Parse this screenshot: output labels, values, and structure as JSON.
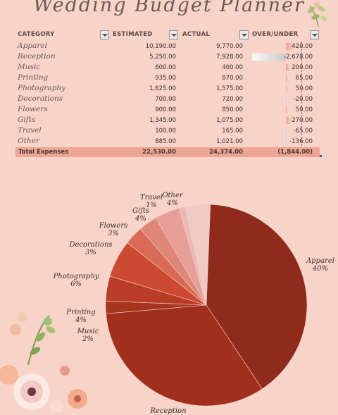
{
  "title": "Wedding Budget Planner",
  "table": {
    "headers": [
      "CATEGORY",
      "ESTIMATED",
      "ACTUAL",
      "OVER/UNDER"
    ],
    "rows": [
      {
        "category": "Apparel",
        "estimated": "10,190.00",
        "actual": "9,770.00",
        "over_under": "420.00",
        "diff": 420
      },
      {
        "category": "Reception",
        "estimated": "5,250.00",
        "actual": "7,928.00",
        "over_under": "-2,678.00",
        "diff": -2678
      },
      {
        "category": "Music",
        "estimated": "600.00",
        "actual": "400.00",
        "over_under": "200.00",
        "diff": 200
      },
      {
        "category": "Printing",
        "estimated": "935.00",
        "actual": "870.00",
        "over_under": "65.00",
        "diff": 65
      },
      {
        "category": "Photography",
        "estimated": "1,625.00",
        "actual": "1,575.00",
        "over_under": "50.00",
        "diff": 50
      },
      {
        "category": "Decorations",
        "estimated": "700.00",
        "actual": "720.00",
        "over_under": "-20.00",
        "diff": -20
      },
      {
        "category": "Flowers",
        "estimated": "900.00",
        "actual": "850.00",
        "over_under": "50.00",
        "diff": 50
      },
      {
        "category": "Gifts",
        "estimated": "1,345.00",
        "actual": "1,075.00",
        "over_under": "270.00",
        "diff": 270
      },
      {
        "category": "Travel",
        "estimated": "100.00",
        "actual": "165.00",
        "over_under": "-65.00",
        "diff": -65
      },
      {
        "category": "Other",
        "estimated": "885.00",
        "actual": "1,021.00",
        "over_under": "-136.00",
        "diff": -136
      }
    ],
    "total": {
      "label": "Total Expenses",
      "estimated": "22,530.00",
      "actual": "24,374.00",
      "over_under": "(1,844.00)"
    }
  },
  "colors": {
    "background": "#f7d3c8",
    "total_row": "#eea594",
    "positive_bar": "#f2a28f",
    "negative_bar": "#c9c9c9"
  },
  "chart_data": {
    "type": "pie",
    "slices": [
      {
        "label": "Apparel",
        "value": 40,
        "pct_label": "40%",
        "color": "#8e2b1c"
      },
      {
        "label": "Reception",
        "value": 33,
        "pct_label": "",
        "color": "#a0301d"
      },
      {
        "label": "Music",
        "value": 2,
        "pct_label": "2%",
        "color": "#a6341f"
      },
      {
        "label": "Printing",
        "value": 4,
        "pct_label": "4%",
        "color": "#b93c26"
      },
      {
        "label": "Photography",
        "value": 6,
        "pct_label": "6%",
        "color": "#cd4a32"
      },
      {
        "label": "Decorations",
        "value": 3,
        "pct_label": "3%",
        "color": "#d96a55"
      },
      {
        "label": "Flowers",
        "value": 3,
        "pct_label": "3%",
        "color": "#de8678"
      },
      {
        "label": "Gifts",
        "value": 4,
        "pct_label": "4%",
        "color": "#e6a099"
      },
      {
        "label": "Travel",
        "value": 1,
        "pct_label": "1%",
        "color": "#ecb8b3"
      },
      {
        "label": "Other",
        "value": 4,
        "pct_label": "4%",
        "color": "#efcac6"
      }
    ]
  }
}
